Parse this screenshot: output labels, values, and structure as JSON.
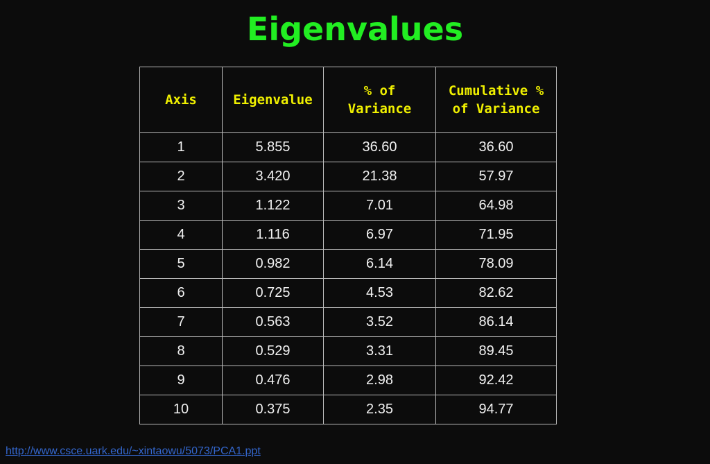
{
  "title": "Eigenvalues",
  "table": {
    "headers": [
      [
        "Axis"
      ],
      [
        "Eigenvalue"
      ],
      [
        "% of",
        "Variance"
      ],
      [
        "Cumulative %",
        "of Variance"
      ]
    ],
    "rows": [
      [
        "1",
        "5.855",
        "36.60",
        "36.60"
      ],
      [
        "2",
        "3.420",
        "21.38",
        "57.97"
      ],
      [
        "3",
        "1.122",
        "7.01",
        "64.98"
      ],
      [
        "4",
        "1.116",
        "6.97",
        "71.95"
      ],
      [
        "5",
        "0.982",
        "6.14",
        "78.09"
      ],
      [
        "6",
        "0.725",
        "4.53",
        "82.62"
      ],
      [
        "7",
        "0.563",
        "3.52",
        "86.14"
      ],
      [
        "8",
        "0.529",
        "3.31",
        "89.45"
      ],
      [
        "9",
        "0.476",
        "2.98",
        "92.42"
      ],
      [
        "10",
        "0.375",
        "2.35",
        "94.77"
      ]
    ]
  },
  "footer": {
    "link_text": "http://www.csce.uark.edu/~xintaowu/5073/PCA1.ppt"
  },
  "colors": {
    "background": "#0c0c0c",
    "title": "#22ee22",
    "header_text": "#f0f000",
    "cell_text": "#f2f2f2",
    "border": "#bcbcbc",
    "link": "#3366cc"
  }
}
